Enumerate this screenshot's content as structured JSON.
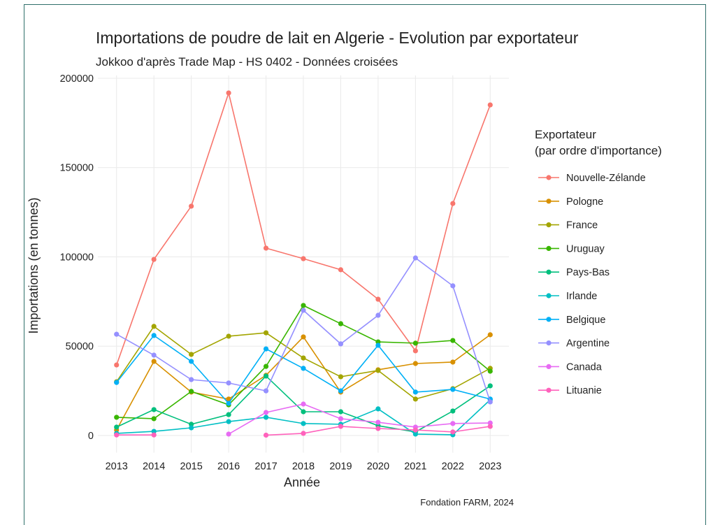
{
  "chart_data": {
    "type": "line",
    "title": "Importations de poudre de lait en Algerie - Evolution par exportateur",
    "subtitle": "Jokkoo d'après Trade Map - HS 0402 - Données croisées",
    "caption": "Fondation FARM, 2024",
    "x_label": "Année",
    "y_label": "Importations (en tonnes)",
    "legend_title": [
      "Exportateur",
      "(par ordre d'importance)"
    ],
    "x": [
      2013,
      2014,
      2015,
      2016,
      2017,
      2018,
      2019,
      2020,
      2021,
      2022,
      2023
    ],
    "xlim": [
      2012.5,
      2023.5
    ],
    "xticks": [
      2013,
      2014,
      2015,
      2016,
      2017,
      2018,
      2019,
      2020,
      2021,
      2022,
      2023
    ],
    "ylim": [
      -9600,
      201600
    ],
    "yticks": [
      0,
      50000,
      100000,
      150000,
      200000
    ],
    "grid": true,
    "legend": "right",
    "series": [
      {
        "name": "Nouvelle-Zélande",
        "color": "#F8766D",
        "values": [
          39500,
          98600,
          128400,
          191800,
          104900,
          99000,
          92800,
          76300,
          47400,
          129900,
          185100
        ]
      },
      {
        "name": "Pologne",
        "color": "#D89000",
        "values": [
          3100,
          41500,
          24300,
          20400,
          33700,
          55200,
          24300,
          36800,
          40300,
          41100,
          56400
        ]
      },
      {
        "name": "France",
        "color": "#A3A500",
        "values": [
          30100,
          61100,
          45400,
          55600,
          57500,
          43400,
          32900,
          36400,
          20400,
          26200,
          37600
        ]
      },
      {
        "name": "Uruguay",
        "color": "#39B600",
        "values": [
          10200,
          9400,
          24700,
          17200,
          38700,
          72800,
          62600,
          52400,
          51700,
          53200,
          36000
        ]
      },
      {
        "name": "Pays-Bas",
        "color": "#00BF7D",
        "values": [
          4700,
          14500,
          6300,
          11700,
          33300,
          13300,
          13300,
          5500,
          2000,
          13700,
          27800
        ]
      },
      {
        "name": "Irlande",
        "color": "#00BFC4",
        "values": [
          1200,
          2300,
          4300,
          7800,
          10200,
          6700,
          6300,
          14900,
          800,
          400,
          20000
        ]
      },
      {
        "name": "Belgique",
        "color": "#00B0F6",
        "values": [
          29700,
          56000,
          41500,
          18000,
          48500,
          37600,
          25000,
          50500,
          24300,
          25800,
          20400
        ]
      },
      {
        "name": "Argentine",
        "color": "#9590FF",
        "values": [
          56700,
          45000,
          31300,
          29400,
          25000,
          70100,
          51300,
          67300,
          99400,
          83800,
          18800
        ]
      },
      {
        "name": "Canada",
        "color": "#E76BF3",
        "values": [
          null,
          null,
          null,
          800,
          12900,
          17600,
          9400,
          7400,
          4700,
          6700,
          7000
        ]
      },
      {
        "name": "Lituanie",
        "color": "#FF62BC",
        "values": [
          300,
          300,
          null,
          null,
          200,
          1200,
          5100,
          3900,
          3100,
          2000,
          5100
        ]
      }
    ]
  }
}
